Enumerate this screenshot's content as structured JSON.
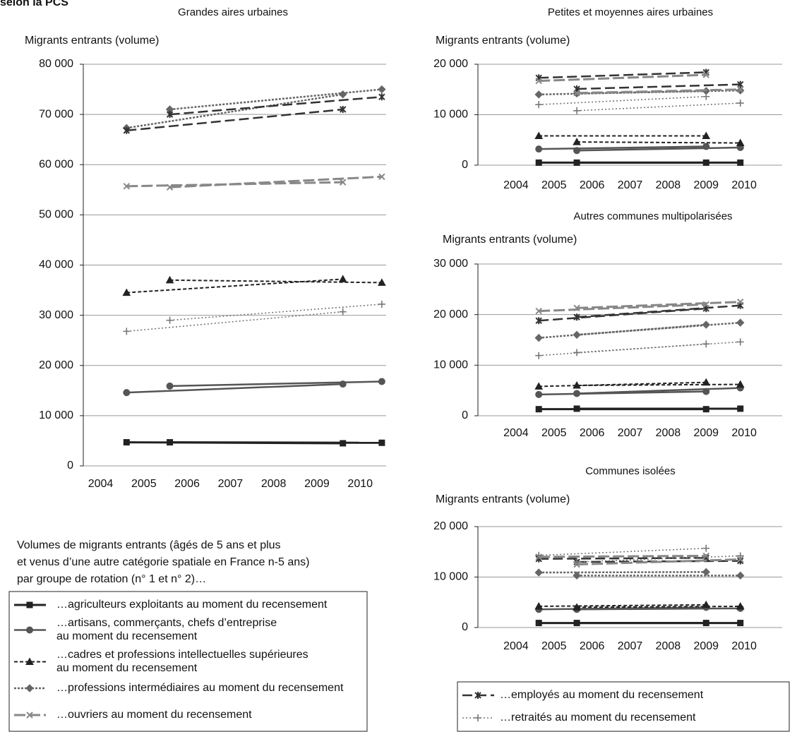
{
  "header": "selon la PCS",
  "note": [
    "Volumes de migrants entrants (âgés de 5 ans et plus",
    "et venus d’une autre catégorie spatiale en France n-5 ans)",
    "par groupe de rotation (n° 1 et n° 2)…"
  ],
  "chart_data": [
    {
      "type": "line",
      "title": "Grandes aires urbaines",
      "y_label": "Migrants entrants (volume)",
      "x": [
        2004.6,
        2005.6,
        2009.6,
        2010.5
      ],
      "xlim": [
        2003.6,
        2010.6
      ],
      "xticks": [
        2004,
        2005,
        2006,
        2007,
        2008,
        2009,
        2010
      ],
      "ylim": [
        0,
        80000
      ],
      "yticks": [
        0,
        {
          "value": 10000,
          "label": "10 000"
        },
        {
          "value": 20000,
          "label": "20 000"
        },
        {
          "value": 30000,
          "label": "30 000"
        },
        {
          "value": 40000,
          "label": "40 000"
        },
        {
          "value": 50000,
          "label": "50 000"
        },
        {
          "value": 60000,
          "label": "60 000"
        },
        {
          "value": 70000,
          "label": "70 000"
        },
        {
          "value": 80000,
          "label": "80 000"
        }
      ],
      "grid": true,
      "series": [
        {
          "name": "…agriculteurs exploitants au moment du recensement",
          "color": "#222222",
          "values": [
            4700,
            4700,
            4500,
            4600
          ]
        },
        {
          "name": "…artisans, commerçants, chefs d’entreprise\nau moment du recensement",
          "color": "#555555",
          "values": [
            14600,
            15900,
            16300,
            16800
          ]
        },
        {
          "name": "…cadres et professions intellectuelles supérieures\nau moment du recensement",
          "color": "#222222",
          "values": [
            34500,
            37000,
            37200,
            36500
          ]
        },
        {
          "name": "…professions intermédiaires au moment du recensement",
          "color": "#666666",
          "values": [
            67300,
            71000,
            74000,
            75000
          ]
        },
        {
          "name": "…employés au moment du recensement",
          "color": "#333333",
          "values": [
            66800,
            70000,
            71000,
            73500
          ]
        },
        {
          "name": "…ouvriers au moment du recensement",
          "color": "#888888",
          "values": [
            55700,
            55500,
            56500,
            57600
          ]
        },
        {
          "name": "…retraités au moment du recensement",
          "color": "#777777",
          "values": [
            26800,
            29000,
            30700,
            32200
          ]
        }
      ]
    },
    {
      "type": "line",
      "title": "Petites et moyennes aires urbaines",
      "y_label": "Migrants entrants (volume)",
      "x": [
        2004.6,
        2005.6,
        2009.0,
        2009.9
      ],
      "xlim": [
        2003.0,
        2011.0
      ],
      "xticks": [
        2004,
        2005,
        2006,
        2007,
        2008,
        2009,
        2010
      ],
      "ylim": [
        0,
        20000
      ],
      "yticks": [
        0,
        {
          "value": 10000,
          "label": "10 000"
        },
        {
          "value": 20000,
          "label": "20 000"
        }
      ],
      "grid": true,
      "series": [
        {
          "color": "#222222",
          "values": [
            500,
            500,
            500,
            500
          ]
        },
        {
          "color": "#555555",
          "values": [
            3200,
            2900,
            3700,
            3500
          ]
        },
        {
          "color": "#222222",
          "values": [
            5800,
            4600,
            5800,
            4400
          ]
        },
        {
          "color": "#666666",
          "values": [
            14000,
            14200,
            14700,
            14800
          ]
        },
        {
          "color": "#333333",
          "values": [
            17300,
            15100,
            18400,
            16000
          ]
        },
        {
          "color": "#888888",
          "values": [
            16700,
            14300,
            17900,
            15000
          ]
        },
        {
          "color": "#777777",
          "values": [
            12000,
            10800,
            13600,
            12300
          ]
        }
      ]
    },
    {
      "type": "line",
      "title": "Autres communes multipolarisées",
      "y_label": "Migrants entrants (volume)",
      "x": [
        2004.6,
        2005.6,
        2009.0,
        2009.9
      ],
      "xlim": [
        2003.0,
        2011.0
      ],
      "xticks": [
        2004,
        2005,
        2006,
        2007,
        2008,
        2009,
        2010
      ],
      "ylim": [
        0,
        30000
      ],
      "yticks": [
        0,
        {
          "value": 10000,
          "label": "10 000"
        },
        {
          "value": 20000,
          "label": "20 000"
        },
        {
          "value": 30000,
          "label": "30 000"
        }
      ],
      "grid": true,
      "series": [
        {
          "color": "#222222",
          "values": [
            1300,
            1400,
            1300,
            1400
          ]
        },
        {
          "color": "#555555",
          "values": [
            4200,
            4400,
            4800,
            5500
          ]
        },
        {
          "color": "#222222",
          "values": [
            5800,
            6000,
            6600,
            6200
          ]
        },
        {
          "color": "#666666",
          "values": [
            15400,
            16000,
            18000,
            18400
          ]
        },
        {
          "color": "#333333",
          "values": [
            18800,
            19500,
            21200,
            21800
          ]
        },
        {
          "color": "#888888",
          "values": [
            20700,
            21300,
            22000,
            22500
          ]
        },
        {
          "color": "#777777",
          "values": [
            11900,
            12500,
            14200,
            14600
          ]
        }
      ]
    },
    {
      "type": "line",
      "title": "Communes isolées",
      "y_label": "Migrants entrants (volume)",
      "x": [
        2004.6,
        2005.6,
        2009.0,
        2009.9
      ],
      "xlim": [
        2003.0,
        2011.0
      ],
      "xticks": [
        2004,
        2005,
        2006,
        2007,
        2008,
        2009,
        2010
      ],
      "ylim": [
        0,
        20000
      ],
      "yticks": [
        0,
        {
          "value": 10000,
          "label": "10 000"
        },
        {
          "value": 20000,
          "label": "20 000"
        }
      ],
      "grid": true,
      "series": [
        {
          "color": "#222222",
          "values": [
            900,
            900,
            900,
            900
          ]
        },
        {
          "color": "#555555",
          "values": [
            3600,
            3600,
            4000,
            3800
          ]
        },
        {
          "color": "#222222",
          "values": [
            4200,
            4000,
            4500,
            4200
          ]
        },
        {
          "color": "#666666",
          "values": [
            10900,
            10300,
            11000,
            10300
          ]
        },
        {
          "color": "#333333",
          "values": [
            13600,
            13000,
            13800,
            13200
          ]
        },
        {
          "color": "#888888",
          "values": [
            14000,
            12500,
            14200,
            13500
          ]
        },
        {
          "color": "#777777",
          "values": [
            14300,
            13000,
            15700,
            14200
          ]
        }
      ]
    }
  ]
}
